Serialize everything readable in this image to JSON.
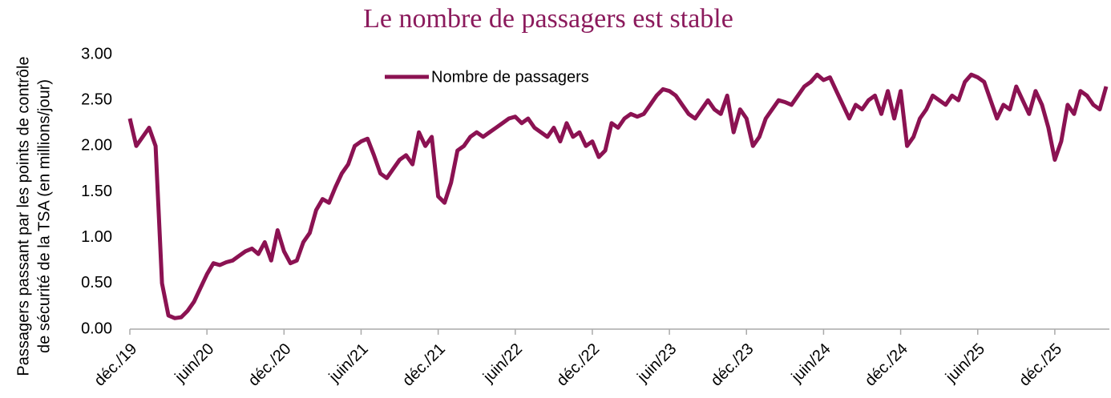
{
  "chart_data": {
    "type": "line",
    "title": "Le nombre de passagers est stable",
    "ylabel": [
      "Passagers passant par les points de contrôle",
      "de sécurité de la TSA (en millions/jour)"
    ],
    "categories": [
      "déc./19",
      null,
      null,
      null,
      null,
      null,
      null,
      null,
      null,
      null,
      null,
      null,
      "juin/20",
      null,
      null,
      null,
      null,
      null,
      null,
      null,
      null,
      null,
      null,
      null,
      "déc./20",
      null,
      null,
      null,
      null,
      null,
      null,
      null,
      null,
      null,
      null,
      null,
      "juin/21",
      null,
      null,
      null,
      null,
      null,
      null,
      null,
      null,
      null,
      null,
      null,
      "déc./21",
      null,
      null,
      null,
      null,
      null,
      null,
      null,
      null,
      null,
      null,
      null,
      "juin/22",
      null,
      null,
      null,
      null,
      null,
      null,
      null,
      null,
      null,
      null,
      null,
      "déc./22",
      null,
      null,
      null,
      null,
      null,
      null,
      null,
      null,
      null,
      null,
      null,
      "juin/23",
      null,
      null,
      null,
      null,
      null,
      null,
      null,
      null,
      null,
      null,
      null,
      "déc./23",
      null,
      null,
      null,
      null,
      null,
      null,
      null,
      null,
      null,
      null,
      null,
      "juin/24",
      null,
      null,
      null,
      null,
      null,
      null,
      null,
      null,
      null,
      null,
      null,
      "déc./24",
      null,
      null,
      null,
      null,
      null,
      null,
      null,
      null,
      null,
      null,
      null,
      "juin/25",
      null,
      null,
      null,
      null,
      null,
      null,
      null,
      null,
      null,
      null,
      null,
      "déc./25",
      null,
      null,
      null,
      null,
      null,
      null,
      null,
      null
    ],
    "series": [
      {
        "name": "Nombre de passagers",
        "color": "#8b1252",
        "values": [
          2.3,
          2.0,
          2.1,
          2.2,
          2.0,
          0.5,
          0.15,
          0.12,
          0.13,
          0.2,
          0.3,
          0.45,
          0.6,
          0.72,
          0.7,
          0.73,
          0.75,
          0.8,
          0.85,
          0.88,
          0.82,
          0.95,
          0.75,
          1.08,
          0.85,
          0.72,
          0.75,
          0.95,
          1.05,
          1.3,
          1.42,
          1.38,
          1.55,
          1.7,
          1.8,
          2.0,
          2.05,
          2.08,
          1.9,
          1.7,
          1.65,
          1.75,
          1.85,
          1.9,
          1.8,
          2.15,
          2.0,
          2.1,
          1.45,
          1.38,
          1.6,
          1.95,
          2.0,
          2.1,
          2.15,
          2.1,
          2.15,
          2.2,
          2.25,
          2.3,
          2.32,
          2.25,
          2.3,
          2.2,
          2.15,
          2.1,
          2.2,
          2.05,
          2.25,
          2.1,
          2.15,
          2.0,
          2.05,
          1.88,
          1.95,
          2.25,
          2.2,
          2.3,
          2.35,
          2.32,
          2.35,
          2.45,
          2.55,
          2.62,
          2.6,
          2.55,
          2.45,
          2.35,
          2.3,
          2.4,
          2.5,
          2.4,
          2.35,
          2.55,
          2.15,
          2.4,
          2.3,
          2.0,
          2.1,
          2.3,
          2.4,
          2.5,
          2.48,
          2.45,
          2.55,
          2.65,
          2.7,
          2.78,
          2.72,
          2.75,
          2.6,
          2.45,
          2.3,
          2.45,
          2.4,
          2.5,
          2.55,
          2.35,
          2.6,
          2.3,
          2.6,
          2.0,
          2.1,
          2.3,
          2.4,
          2.55,
          2.5,
          2.45,
          2.55,
          2.5,
          2.7,
          2.78,
          2.75,
          2.7,
          2.5,
          2.3,
          2.45,
          2.4,
          2.65,
          2.5,
          2.35,
          2.6,
          2.45,
          2.2,
          1.85,
          2.05,
          2.45,
          2.35,
          2.6,
          2.55,
          2.45,
          2.4,
          2.65
        ]
      }
    ],
    "ylim": [
      0,
      3
    ],
    "yticks": [
      {
        "value": 0,
        "label": "0.00"
      },
      {
        "value": 0.5,
        "label": "0.50"
      },
      {
        "value": 1,
        "label": "1.00"
      },
      {
        "value": 1.5,
        "label": "1.50"
      },
      {
        "value": 2,
        "label": "2.00"
      },
      {
        "value": 2.5,
        "label": "2.50"
      },
      {
        "value": 3,
        "label": "3.00"
      }
    ],
    "grid": false
  }
}
